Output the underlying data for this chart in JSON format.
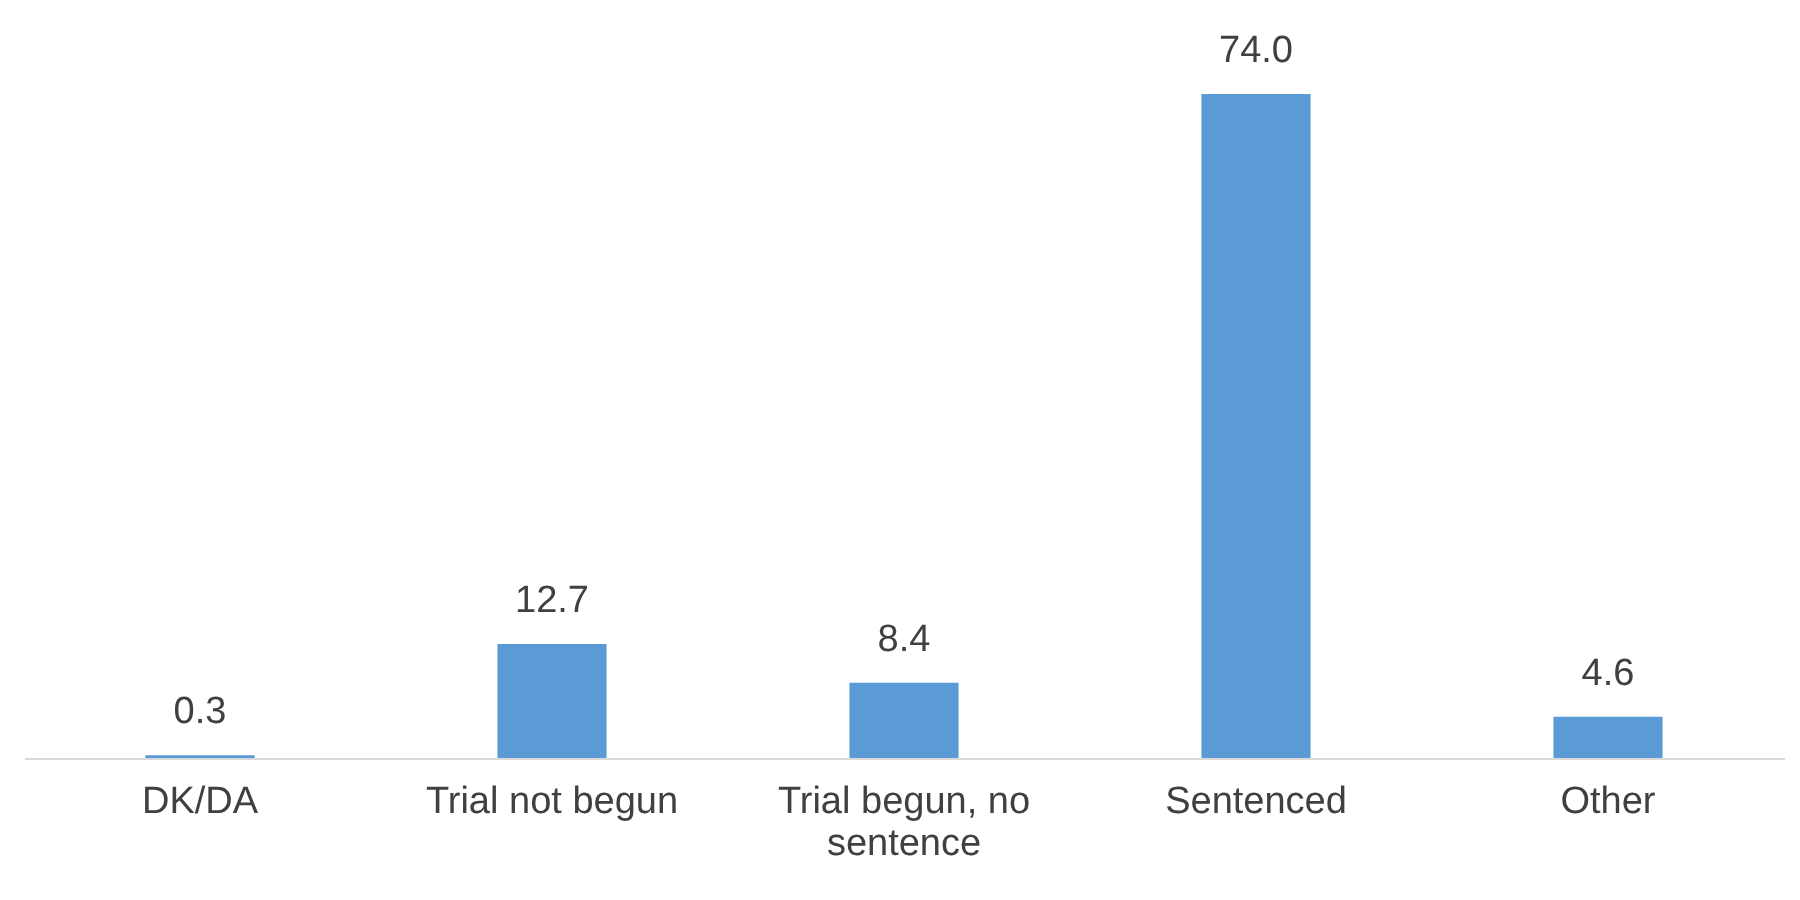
{
  "chart_data": {
    "type": "bar",
    "categories": [
      "DK/DA",
      "Trial not begun",
      "Trial begun, no sentence",
      "Sentenced",
      "Other"
    ],
    "values": [
      0.3,
      12.7,
      8.4,
      74.0,
      4.6
    ],
    "color": "#5b9bd5",
    "value_labels": [
      "0.3",
      "12.7",
      "8.4",
      "74.0",
      "4.6"
    ]
  }
}
